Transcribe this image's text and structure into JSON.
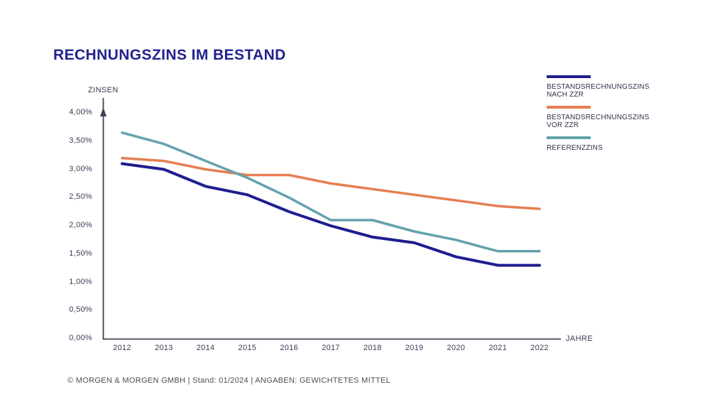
{
  "title": "RECHNUNGSZINS IM BESTAND",
  "footer": "© MORGEN & MORGEN GMBH | Stand: 01/2024 | ANGABEN: GEWICHTETES MITTEL",
  "colors": {
    "title": "#22228f",
    "axis": "#414155",
    "tick_text": "#3a3a55",
    "nach_zzr": "#1e1e8f",
    "vor_zzr": "#e67e52",
    "referenzzins": "#63a2ab"
  },
  "legend": [
    {
      "line1": "BESTANDSRECHNUNGSZINS",
      "line2": "NACH ZZR"
    },
    {
      "line1": "BESTANDSRECHNUNGSZINS",
      "line2": "VOR ZZR"
    },
    {
      "line1": "REFERENZZINS",
      "line2": ""
    }
  ],
  "chart_data": {
    "type": "line",
    "title": "RECHNUNGSZINS IM BESTAND",
    "xlabel": "JAHRE",
    "ylabel": "ZINSEN",
    "x": [
      2012,
      2013,
      2014,
      2015,
      2016,
      2017,
      2018,
      2019,
      2020,
      2021,
      2022
    ],
    "ylim": [
      0,
      4
    ],
    "ytick_step": 0.5,
    "ytick_labels": [
      "0,00%",
      "0,50%",
      "1,00%",
      "1,50%",
      "2,00%",
      "2,50%",
      "3,00%",
      "3,50%",
      "4,00%"
    ],
    "grid": false,
    "legend_position": "top-right",
    "unit": "percent",
    "series": [
      {
        "id": "nach-zzr",
        "name": "BESTANDSRECHNUNGSZINS NACH ZZR",
        "color": "#1e1e8f",
        "stroke_width": 4,
        "values": [
          3.1,
          3.0,
          2.7,
          2.55,
          2.25,
          2.0,
          1.8,
          1.7,
          1.45,
          1.3,
          1.3
        ]
      },
      {
        "id": "vor-zzr",
        "name": "BESTANDSRECHNUNGSZINS VOR ZZR",
        "color": "#e67e52",
        "stroke_width": 3.5,
        "values": [
          3.2,
          3.15,
          3.0,
          2.9,
          2.9,
          2.75,
          2.65,
          2.55,
          2.45,
          2.35,
          2.3
        ]
      },
      {
        "id": "referenzzins",
        "name": "REFERENZZINS",
        "color": "#63a2ab",
        "stroke_width": 3.5,
        "values": [
          3.65,
          3.45,
          3.15,
          2.85,
          2.5,
          2.1,
          2.1,
          1.9,
          1.75,
          1.55,
          1.55
        ]
      }
    ]
  }
}
